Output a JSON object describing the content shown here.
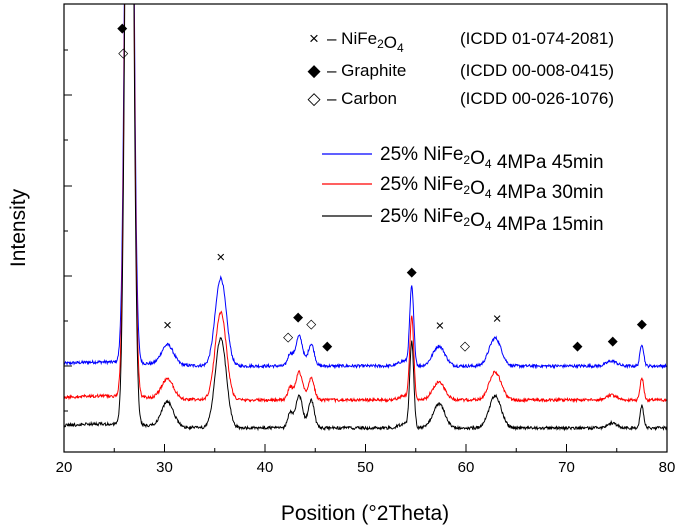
{
  "chart_data": {
    "type": "line",
    "title": "",
    "xlabel": "Position (°2Theta)",
    "ylabel": "Intensity",
    "xlim": [
      20,
      80
    ],
    "x_ticks": [
      20,
      30,
      40,
      50,
      60,
      70,
      80
    ],
    "y_tick_labels_shown": false,
    "grid": false,
    "phase_legend": [
      {
        "symbol": "×",
        "marker": "cross",
        "label": "– NiFe₂O₄",
        "reference": "(ICDD 01-074-2081)"
      },
      {
        "symbol": "◆",
        "marker": "diamond-filled",
        "label": "– Graphite",
        "reference": "(ICDD 00-008-0415)"
      },
      {
        "symbol": "◇",
        "marker": "diamond-open",
        "label": "– Carbon",
        "reference": "(ICDD 00-026-1076)"
      }
    ],
    "legend_position": "top-right",
    "series": [
      {
        "name": "25% NiFe₂O₄ 4MPa 45min",
        "color": "#0000ff",
        "baseline_offset": 366,
        "peaks": [
          [
            26.5,
            1000,
            0.35
          ],
          [
            30.3,
            20,
            0.6
          ],
          [
            35.6,
            88,
            0.55
          ],
          [
            42.5,
            12,
            0.25
          ],
          [
            43.4,
            30,
            0.35
          ],
          [
            44.6,
            22,
            0.3
          ],
          [
            53.8,
            5,
            0.5
          ],
          [
            54.6,
            78,
            0.2
          ],
          [
            57.3,
            20,
            0.6
          ],
          [
            62.9,
            28,
            0.6
          ],
          [
            74.5,
            5,
            0.5
          ],
          [
            77.5,
            22,
            0.18
          ]
        ]
      },
      {
        "name": "25% NiFe₂O₄ 4MPa 30min",
        "color": "#ff0000",
        "baseline_offset": 400,
        "peaks": [
          [
            26.5,
            1000,
            0.35
          ],
          [
            30.3,
            20,
            0.6
          ],
          [
            35.6,
            88,
            0.55
          ],
          [
            42.5,
            12,
            0.25
          ],
          [
            43.4,
            28,
            0.35
          ],
          [
            44.6,
            22,
            0.3
          ],
          [
            53.8,
            4,
            0.5
          ],
          [
            54.6,
            82,
            0.2
          ],
          [
            57.3,
            18,
            0.6
          ],
          [
            62.9,
            28,
            0.6
          ],
          [
            74.5,
            5,
            0.5
          ],
          [
            77.5,
            22,
            0.18
          ]
        ]
      },
      {
        "name": "25% NiFe₂O₄ 4MPa 15min",
        "color": "#000000",
        "baseline_offset": 428,
        "peaks": [
          [
            26.5,
            1000,
            0.35
          ],
          [
            30.3,
            25,
            0.6
          ],
          [
            35.6,
            90,
            0.55
          ],
          [
            42.5,
            15,
            0.25
          ],
          [
            43.4,
            32,
            0.35
          ],
          [
            44.6,
            28,
            0.3
          ],
          [
            53.8,
            4,
            0.5
          ],
          [
            54.6,
            85,
            0.2
          ],
          [
            57.3,
            24,
            0.6
          ],
          [
            62.9,
            32,
            0.6
          ],
          [
            74.5,
            5,
            0.5
          ],
          [
            77.5,
            22,
            0.18
          ]
        ]
      }
    ],
    "peak_markers": [
      {
        "x": 25.8,
        "symbol": "◆"
      },
      {
        "x": 25.9,
        "symbol": "◇"
      },
      {
        "x": 30.3,
        "symbol": "×"
      },
      {
        "x": 35.6,
        "symbol": "×"
      },
      {
        "x": 42.3,
        "symbol": "◇"
      },
      {
        "x": 43.3,
        "symbol": "◆"
      },
      {
        "x": 44.6,
        "symbol": "◇"
      },
      {
        "x": 46.2,
        "symbol": "◆"
      },
      {
        "x": 54.6,
        "symbol": "◆"
      },
      {
        "x": 57.4,
        "symbol": "×"
      },
      {
        "x": 59.9,
        "symbol": "◇"
      },
      {
        "x": 63.1,
        "symbol": "×"
      },
      {
        "x": 71.1,
        "symbol": "◆"
      },
      {
        "x": 74.6,
        "symbol": "◆"
      },
      {
        "x": 77.5,
        "symbol": "◆"
      }
    ]
  }
}
